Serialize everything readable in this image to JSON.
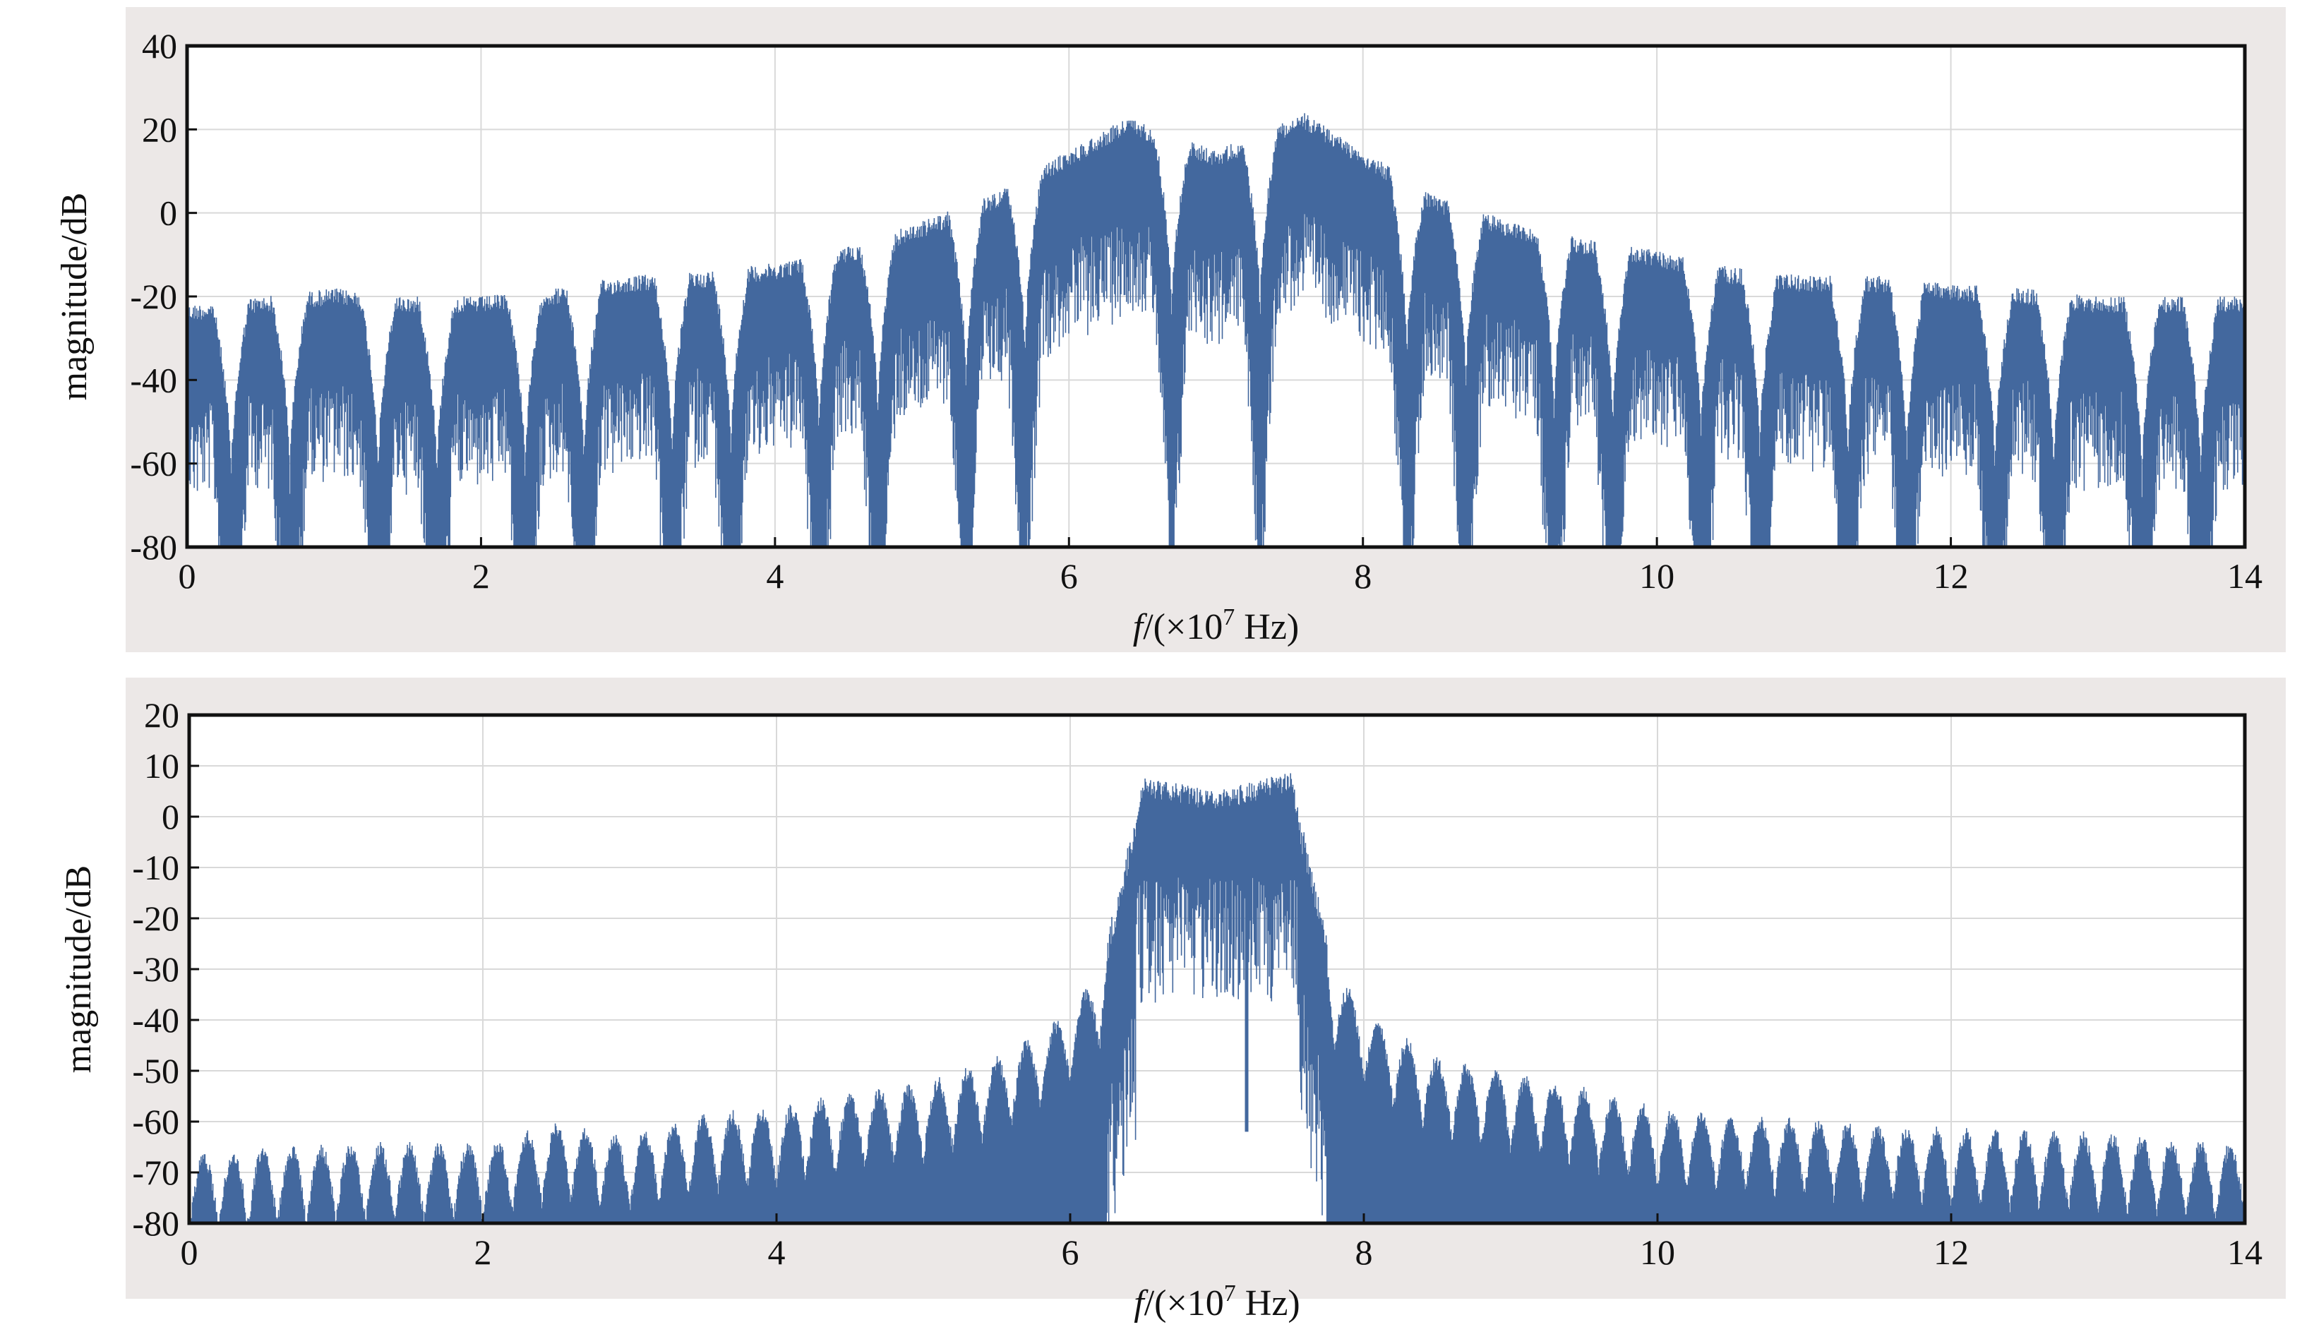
{
  "colors": {
    "series": "#43689e",
    "panel_background": "#ece8e7",
    "plot_background": "#ffffff",
    "grid": "#d9d9d9",
    "frame": "#111111"
  },
  "chart_data": [
    {
      "type": "line",
      "title": "",
      "xlabel_italic": "f",
      "xlabel_rest": "/(×10",
      "xlabel_sup": "7",
      "xlabel_end": " Hz)",
      "ylabel": "magnitude/dB",
      "xlim": [
        0,
        14
      ],
      "ylim": [
        -80,
        40
      ],
      "xticks": [
        0,
        2,
        4,
        6,
        8,
        10,
        12,
        14
      ],
      "yticks": [
        -80,
        -60,
        -40,
        -20,
        0,
        20,
        40
      ],
      "grid": true,
      "series": [
        {
          "envelope_peaks": [
            [
              0,
              -22
            ],
            [
              0.5,
              -20
            ],
            [
              1.0,
              -18
            ],
            [
              1.5,
              -20
            ],
            [
              2.0,
              -20
            ],
            [
              2.5,
              -18
            ],
            [
              3.0,
              -15
            ],
            [
              3.5,
              -14
            ],
            [
              4.0,
              -12
            ],
            [
              4.5,
              -8
            ],
            [
              5.0,
              -2
            ],
            [
              5.5,
              5
            ],
            [
              6.4,
              23
            ],
            [
              7.0,
              15
            ],
            [
              7.6,
              24
            ],
            [
              8.5,
              4
            ],
            [
              9.0,
              -2
            ],
            [
              9.5,
              -6
            ],
            [
              10.0,
              -9
            ],
            [
              10.5,
              -13
            ],
            [
              11.0,
              -15
            ],
            [
              11.5,
              -15
            ],
            [
              12.0,
              -17
            ],
            [
              12.5,
              -18
            ],
            [
              13.0,
              -20
            ],
            [
              13.5,
              -20
            ],
            [
              14.0,
              -20
            ]
          ],
          "nulls": [
            0.3,
            0.7,
            1.3,
            1.7,
            2.3,
            2.7,
            3.3,
            3.7,
            4.3,
            4.7,
            5.3,
            5.7,
            6.7,
            7.3,
            8.3,
            8.7,
            9.3,
            9.7,
            10.3,
            10.7,
            11.3,
            11.7,
            12.3,
            12.7,
            13.3,
            13.7
          ]
        }
      ]
    },
    {
      "type": "line",
      "title": "",
      "xlabel_italic": "f",
      "xlabel_rest": "/(×10",
      "xlabel_sup": "7",
      "xlabel_end": " Hz)",
      "ylabel": "magnitude/dB",
      "xlim": [
        0,
        14
      ],
      "ylim": [
        -80,
        20
      ],
      "xticks": [
        0,
        2,
        4,
        6,
        8,
        10,
        12,
        14
      ],
      "yticks": [
        -80,
        -70,
        -60,
        -50,
        -40,
        -30,
        -20,
        -10,
        0,
        10,
        20
      ],
      "grid": true,
      "series": [
        {
          "passband": [
            6.3,
            7.7
          ],
          "envelope_peaks": [
            [
              0,
              -66
            ],
            [
              1.0,
              -64
            ],
            [
              2.0,
              -64
            ],
            [
              2.5,
              -60
            ],
            [
              3.0,
              -62
            ],
            [
              3.5,
              -58
            ],
            [
              4.0,
              -57
            ],
            [
              4.5,
              -54
            ],
            [
              5.0,
              -52
            ],
            [
              5.5,
              -47
            ],
            [
              5.9,
              -40
            ],
            [
              6.2,
              -30
            ],
            [
              6.5,
              8
            ],
            [
              7.0,
              5
            ],
            [
              7.5,
              9
            ],
            [
              7.8,
              -30
            ],
            [
              8.1,
              -40
            ],
            [
              8.5,
              -47
            ],
            [
              9.0,
              -50
            ],
            [
              9.5,
              -53
            ],
            [
              10.0,
              -57
            ],
            [
              11.0,
              -59
            ],
            [
              12.0,
              -61
            ],
            [
              13.0,
              -62
            ],
            [
              14.0,
              -64
            ]
          ]
        }
      ]
    }
  ]
}
